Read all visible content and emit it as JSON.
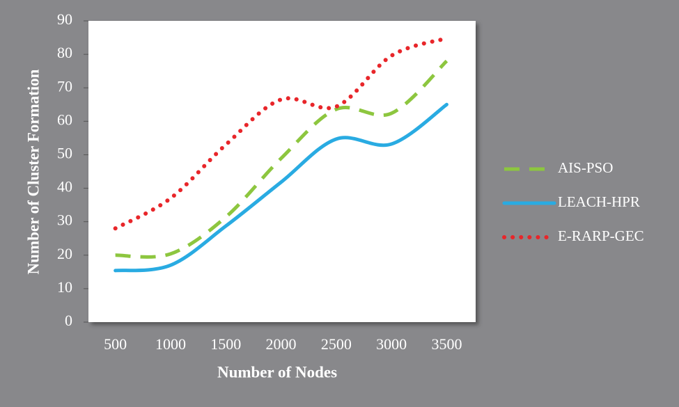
{
  "chart_data": {
    "type": "line",
    "x_label": "Number of Nodes",
    "y_label": "Number of Cluster Formation",
    "categories": [
      "500",
      "1000",
      "1500",
      "2000",
      "2500",
      "3000",
      "3500"
    ],
    "series": [
      {
        "name": "AIS-PSO",
        "color": "#8dc63f",
        "style": "dashed",
        "values": [
          20,
          20.4,
          31.4,
          48.9,
          63.6,
          62.4,
          78
        ]
      },
      {
        "name": "LEACH-HPR",
        "color": "#29abe2",
        "style": "solid",
        "values": [
          15.4,
          17,
          28.7,
          41.8,
          54.7,
          53.2,
          65
        ]
      },
      {
        "name": "E-RARP-GEC",
        "color": "#e8262a",
        "style": "dotted",
        "values": [
          28,
          37,
          53,
          66.5,
          64.4,
          79.6,
          84.8
        ]
      }
    ],
    "ylim": [
      0,
      90
    ],
    "yticks": [
      0,
      10,
      20,
      30,
      40,
      50,
      60,
      70,
      80,
      90
    ],
    "smooth": true,
    "legend": "right"
  }
}
